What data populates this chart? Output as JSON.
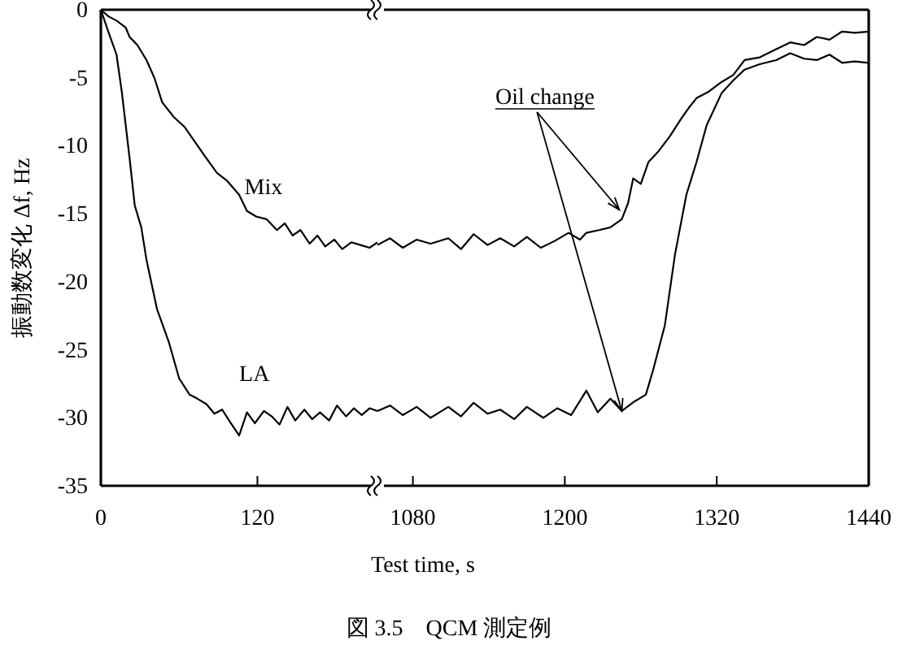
{
  "chart_data": [
    {
      "type": "line",
      "xlabel": "Test time, s",
      "ylabel": "振動数変化 Δf, Hz",
      "xlim": [
        0,
        212
      ],
      "xticks": [
        0,
        120
      ],
      "ylim": [
        -35,
        0
      ],
      "yticks": [
        -35,
        -30,
        -25,
        -20,
        -15,
        -10,
        -5,
        0
      ],
      "annotations": [
        "図 3.5　QCM 測定例"
      ],
      "series": [
        {
          "name": "Mix",
          "color": "#000000",
          "x": [
            0,
            6,
            12,
            19,
            22,
            28,
            35,
            41,
            47,
            56,
            64,
            72,
            80,
            89,
            97,
            106,
            112,
            119,
            127,
            135,
            141,
            147,
            153,
            160,
            166,
            172,
            179,
            185,
            192,
            199,
            206,
            212
          ],
          "values": [
            0,
            -0.5,
            -0.8,
            -1.3,
            -2,
            -2.6,
            -3.7,
            -5,
            -6.8,
            -7.9,
            -8.6,
            -9.7,
            -10.8,
            -12,
            -12.6,
            -13.6,
            -14.8,
            -15.2,
            -15.4,
            -16.2,
            -15.7,
            -16.6,
            -16.2,
            -17.2,
            -16.6,
            -17.4,
            -16.9,
            -17.6,
            -17.1,
            -17.3,
            -17.5,
            -17.1
          ]
        },
        {
          "name": "LA",
          "color": "#000000",
          "x": [
            0,
            6,
            12,
            16,
            22,
            26,
            31,
            35,
            43,
            52,
            60,
            68,
            74,
            81,
            87,
            93,
            99,
            106,
            112,
            118,
            125,
            131,
            137,
            143,
            149,
            156,
            162,
            168,
            175,
            181,
            188,
            194,
            200,
            206,
            212
          ],
          "values": [
            0,
            -1.7,
            -3.3,
            -6,
            -10.9,
            -14.4,
            -16,
            -18.4,
            -22,
            -24.4,
            -27.1,
            -28.3,
            -28.6,
            -29,
            -29.7,
            -29.4,
            -30.3,
            -31.3,
            -29.6,
            -30.4,
            -29.5,
            -29.9,
            -30.5,
            -29.2,
            -30.2,
            -29.4,
            -30.1,
            -29.6,
            -30.2,
            -29.1,
            -29.9,
            -29.3,
            -29.8,
            -29.3,
            -29.5
          ]
        }
      ]
    },
    {
      "type": "line",
      "tick_labels": "x",
      "xlim": [
        1052,
        1440
      ],
      "xticks": [
        1080,
        1200,
        1320,
        1440
      ],
      "ylim": [
        -35,
        0
      ],
      "annotations": [
        {
          "text": "Oil change",
          "x": 1243,
          "y": -14.7
        }
      ],
      "series": [
        {
          "color": "#000000",
          "x": [
            1052,
            1062,
            1072,
            1083,
            1094,
            1108,
            1118,
            1128,
            1139,
            1149,
            1160,
            1170,
            1181,
            1192,
            1203,
            1212,
            1217,
            1227,
            1236,
            1245,
            1250,
            1254,
            1260,
            1266,
            1274,
            1283,
            1292,
            1298,
            1304,
            1314,
            1324,
            1333,
            1342,
            1354,
            1367,
            1378,
            1389,
            1399,
            1409,
            1419,
            1429,
            1440
          ],
          "values": [
            -17.3,
            -16.8,
            -17.5,
            -16.9,
            -17.2,
            -16.8,
            -17.6,
            -16.5,
            -17.3,
            -16.8,
            -17.4,
            -16.7,
            -17.5,
            -17,
            -16.4,
            -16.9,
            -16.4,
            -16.2,
            -16,
            -15.4,
            -14.2,
            -12.4,
            -12.8,
            -11.2,
            -10.4,
            -9.3,
            -8,
            -7.2,
            -6.5,
            -6,
            -5.3,
            -4.8,
            -3.7,
            -3.5,
            -2.9,
            -2.4,
            -2.6,
            -2,
            -2.2,
            -1.6,
            -1.7,
            -1.6
          ]
        },
        {
          "color": "#000000",
          "x": [
            1052,
            1062,
            1072,
            1083,
            1094,
            1108,
            1118,
            1128,
            1139,
            1149,
            1160,
            1170,
            1183,
            1194,
            1205,
            1217,
            1226,
            1236,
            1245,
            1255,
            1264,
            1270,
            1279,
            1287,
            1296,
            1304,
            1312,
            1324,
            1333,
            1342,
            1354,
            1367,
            1378,
            1389,
            1399,
            1409,
            1419,
            1429,
            1440
          ],
          "values": [
            -29.5,
            -29.1,
            -29.8,
            -29.2,
            -30,
            -29.2,
            -29.9,
            -28.9,
            -29.7,
            -29.4,
            -30.1,
            -29.2,
            -30,
            -29.3,
            -29.8,
            -28,
            -29.6,
            -28.6,
            -29.5,
            -28.8,
            -28.3,
            -26.4,
            -23.2,
            -18,
            -13.6,
            -11.2,
            -8.5,
            -6.1,
            -5.2,
            -4.4,
            -4,
            -3.7,
            -3.2,
            -3.6,
            -3.7,
            -3.3,
            -3.9,
            -3.8,
            -3.9
          ]
        }
      ]
    }
  ]
}
